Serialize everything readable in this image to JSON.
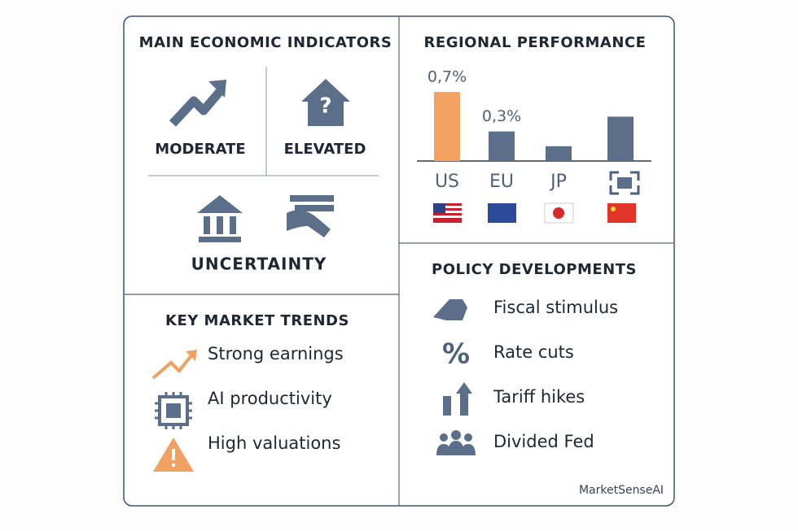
{
  "indicators": {
    "title": "MAIN ECONOMIC INDICATORS",
    "items": [
      "MODERATE",
      "ELEVATED",
      "UNCERTAINTY"
    ]
  },
  "trends": {
    "title": "KEY MARKET TRENDS",
    "items": [
      "Strong earnings",
      "AI productivity",
      "High valuations"
    ]
  },
  "policy": {
    "title": "POLICY DEVELOPMENTS",
    "items": [
      "Fiscal stimulus",
      "Rate cuts",
      "Tariff hikes",
      "Divided Fed"
    ]
  },
  "chart_data": {
    "type": "bar",
    "title": "REGIONAL PERFORMANCE",
    "categories": [
      "US",
      "EU",
      "JP",
      null
    ],
    "values": [
      0.7,
      0.3,
      0.15,
      0.45
    ],
    "value_labels": [
      "0,7%",
      "0,3%",
      null,
      null
    ],
    "colors": [
      "#f4a261",
      "#5c6f8a",
      "#5c6f8a",
      "#5c6f8a"
    ],
    "ylim": [
      0,
      0.8
    ]
  },
  "footer": "MarketSenseAI"
}
